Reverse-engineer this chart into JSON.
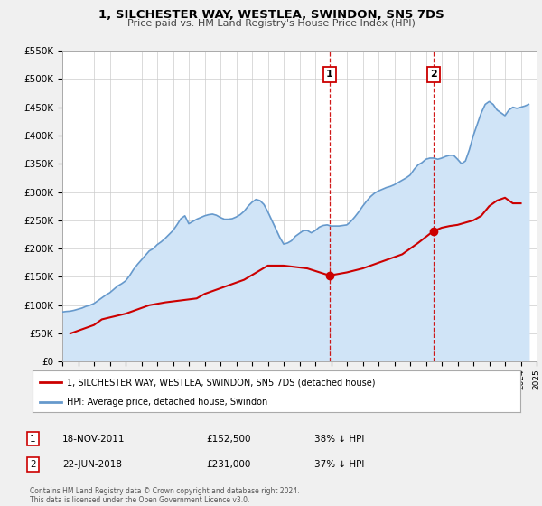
{
  "title": "1, SILCHESTER WAY, WESTLEA, SWINDON, SN5 7DS",
  "subtitle": "Price paid vs. HM Land Registry's House Price Index (HPI)",
  "legend_label_red": "1, SILCHESTER WAY, WESTLEA, SWINDON, SN5 7DS (detached house)",
  "legend_label_blue": "HPI: Average price, detached house, Swindon",
  "footnote": "Contains HM Land Registry data © Crown copyright and database right 2024.\nThis data is licensed under the Open Government Licence v3.0.",
  "ylim": [
    0,
    550000
  ],
  "yticks": [
    0,
    50000,
    100000,
    150000,
    200000,
    250000,
    300000,
    350000,
    400000,
    450000,
    500000,
    550000
  ],
  "ytick_labels": [
    "£0",
    "£50K",
    "£100K",
    "£150K",
    "£200K",
    "£250K",
    "£300K",
    "£350K",
    "£400K",
    "£450K",
    "£500K",
    "£550K"
  ],
  "xlim_start": 1995,
  "xlim_end": 2025,
  "event1_x": 2011.9,
  "event1_label": "1",
  "event1_y_dot": 152500,
  "event1_date": "18-NOV-2011",
  "event1_price": "£152,500",
  "event1_hpi": "38% ↓ HPI",
  "event2_x": 2018.47,
  "event2_label": "2",
  "event2_y_dot": 231000,
  "event2_date": "22-JUN-2018",
  "event2_price": "£231,000",
  "event2_hpi": "37% ↓ HPI",
  "background_color": "#f0f0f0",
  "plot_bg_color": "#ffffff",
  "grid_color": "#cccccc",
  "red_line_color": "#cc0000",
  "blue_line_color": "#6699cc",
  "blue_fill_color": "#d0e4f7",
  "red_dot_color": "#cc0000",
  "dashed_line_color": "#cc0000",
  "hpi_data_x": [
    1995.0,
    1995.25,
    1995.5,
    1995.75,
    1996.0,
    1996.25,
    1996.5,
    1996.75,
    1997.0,
    1997.25,
    1997.5,
    1997.75,
    1998.0,
    1998.25,
    1998.5,
    1998.75,
    1999.0,
    1999.25,
    1999.5,
    1999.75,
    2000.0,
    2000.25,
    2000.5,
    2000.75,
    2001.0,
    2001.25,
    2001.5,
    2001.75,
    2002.0,
    2002.25,
    2002.5,
    2002.75,
    2003.0,
    2003.25,
    2003.5,
    2003.75,
    2004.0,
    2004.25,
    2004.5,
    2004.75,
    2005.0,
    2005.25,
    2005.5,
    2005.75,
    2006.0,
    2006.25,
    2006.5,
    2006.75,
    2007.0,
    2007.25,
    2007.5,
    2007.75,
    2008.0,
    2008.25,
    2008.5,
    2008.75,
    2009.0,
    2009.25,
    2009.5,
    2009.75,
    2010.0,
    2010.25,
    2010.5,
    2010.75,
    2011.0,
    2011.25,
    2011.5,
    2011.75,
    2012.0,
    2012.25,
    2012.5,
    2012.75,
    2013.0,
    2013.25,
    2013.5,
    2013.75,
    2014.0,
    2014.25,
    2014.5,
    2014.75,
    2015.0,
    2015.25,
    2015.5,
    2015.75,
    2016.0,
    2016.25,
    2016.5,
    2016.75,
    2017.0,
    2017.25,
    2017.5,
    2017.75,
    2018.0,
    2018.25,
    2018.5,
    2018.75,
    2019.0,
    2019.25,
    2019.5,
    2019.75,
    2020.0,
    2020.25,
    2020.5,
    2020.75,
    2021.0,
    2021.25,
    2021.5,
    2021.75,
    2022.0,
    2022.25,
    2022.5,
    2022.75,
    2023.0,
    2023.25,
    2023.5,
    2023.75,
    2024.0,
    2024.25,
    2024.5
  ],
  "hpi_data_y": [
    88000,
    89000,
    89500,
    91000,
    93000,
    95000,
    98000,
    100000,
    103000,
    108000,
    113000,
    118000,
    122000,
    128000,
    134000,
    138000,
    143000,
    152000,
    163000,
    172000,
    180000,
    188000,
    196000,
    200000,
    207000,
    212000,
    218000,
    225000,
    232000,
    242000,
    253000,
    258000,
    244000,
    248000,
    252000,
    255000,
    258000,
    260000,
    261000,
    259000,
    255000,
    252000,
    252000,
    253000,
    256000,
    260000,
    266000,
    275000,
    282000,
    287000,
    285000,
    278000,
    265000,
    250000,
    235000,
    220000,
    208000,
    210000,
    214000,
    222000,
    227000,
    232000,
    232000,
    228000,
    232000,
    238000,
    241000,
    242000,
    240000,
    240000,
    240000,
    241000,
    242000,
    248000,
    256000,
    265000,
    275000,
    284000,
    292000,
    298000,
    302000,
    305000,
    308000,
    310000,
    313000,
    317000,
    321000,
    325000,
    330000,
    340000,
    348000,
    352000,
    358000,
    360000,
    360000,
    358000,
    360000,
    363000,
    365000,
    365000,
    358000,
    350000,
    355000,
    375000,
    400000,
    420000,
    440000,
    455000,
    460000,
    455000,
    445000,
    440000,
    435000,
    445000,
    450000,
    448000,
    450000,
    452000,
    455000
  ],
  "price_data_x": [
    1995.5,
    1996.0,
    1997.0,
    1997.5,
    1999.0,
    2000.5,
    2001.5,
    2003.5,
    2004.0,
    2006.5,
    2008.0,
    2009.0,
    2010.5,
    2011.9,
    2013.0,
    2014.0,
    2015.0,
    2016.0,
    2016.5,
    2017.5,
    2018.47,
    2019.0,
    2019.5,
    2020.0,
    2021.0,
    2021.5,
    2022.0,
    2022.5,
    2023.0,
    2023.5,
    2024.0
  ],
  "price_data_y": [
    50000,
    55000,
    65000,
    75000,
    85000,
    100000,
    105000,
    112000,
    120000,
    145000,
    170000,
    170000,
    165000,
    152500,
    158000,
    165000,
    175000,
    185000,
    190000,
    210000,
    231000,
    237000,
    240000,
    242000,
    250000,
    258000,
    275000,
    285000,
    290000,
    280000,
    280000
  ]
}
